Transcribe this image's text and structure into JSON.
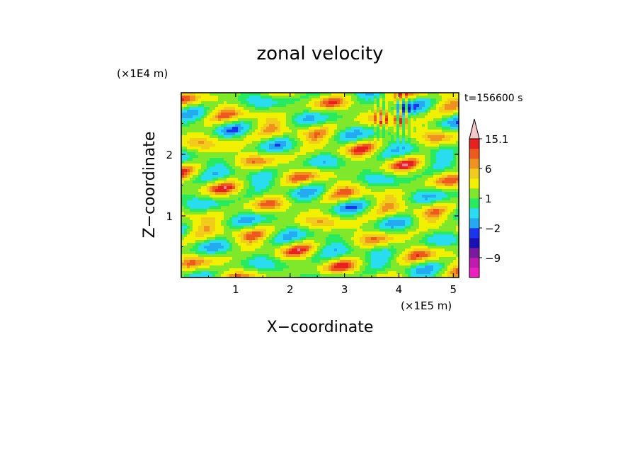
{
  "chart_data": {
    "type": "heatmap",
    "title": "zonal velocity",
    "xlabel": "X−coordinate",
    "ylabel": "Z−coordinate",
    "x_multiplier": "(×1E5 m)",
    "y_multiplier": "(×1E4 m)",
    "time_label": "t=156600 s",
    "xlim": [
      0,
      5.1
    ],
    "ylim": [
      0,
      3.0
    ],
    "x_ticks": [
      1,
      2,
      3,
      4,
      5
    ],
    "y_ticks": [
      1,
      2
    ],
    "colorbar": {
      "levels": [
        -15,
        -12,
        -9,
        -6,
        -4,
        -2,
        -1,
        0,
        1,
        2,
        4,
        6,
        9,
        12,
        15.1
      ],
      "labels": [
        "15.1",
        "6",
        "1",
        "−2",
        "−9"
      ],
      "label_values": [
        15.1,
        6,
        1,
        -2,
        -9
      ],
      "colors": [
        "#ee1fbf",
        "#c01ab0",
        "#7a1aa0",
        "#1a10b8",
        "#1a34f0",
        "#23aaf0",
        "#2adcf0",
        "#27ea5e",
        "#7fe82a",
        "#f0f000",
        "#f2cc1a",
        "#f0921e",
        "#ee5a1e",
        "#e82020",
        "#f0809a",
        "#f7c8c8"
      ],
      "extend_max": true
    }
  }
}
